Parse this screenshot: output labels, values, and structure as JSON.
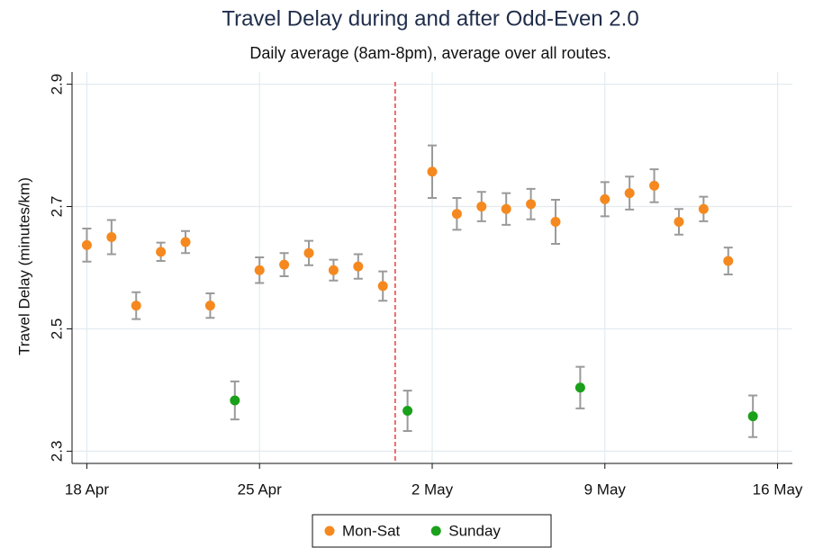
{
  "chart_data": {
    "type": "scatter",
    "title": "Travel Delay during and after Odd-Even 2.0",
    "subtitle": "Daily average (8am-8pm), average over all routes.",
    "y_label": "Travel Delay (minutes/km)",
    "xlim": [
      -0.6,
      28.6
    ],
    "xticks": [
      {
        "value": 0,
        "label": "18 Apr"
      },
      {
        "value": 7,
        "label": "25 Apr"
      },
      {
        "value": 14,
        "label": "2 May"
      },
      {
        "value": 21,
        "label": "9 May"
      },
      {
        "value": 28,
        "label": "16 May"
      }
    ],
    "ylim": [
      2.28,
      2.92
    ],
    "yticks": [
      {
        "value": 2.3,
        "label": "2.3"
      },
      {
        "value": 2.5,
        "label": "2.5"
      },
      {
        "value": 2.7,
        "label": "2.7"
      },
      {
        "value": 2.9,
        "label": "2.9"
      }
    ],
    "grid": true,
    "reference_line": {
      "x": 12.5,
      "color": "#e8322e"
    },
    "error_color": "#9a9a9a",
    "legend": "bottom",
    "series": [
      {
        "name": "Mon-Sat",
        "color": "#f5891f",
        "x": [
          0,
          1,
          2,
          3,
          4,
          5,
          7,
          8,
          9,
          10,
          11,
          12,
          14,
          15,
          16,
          17,
          18,
          19,
          21,
          22,
          23,
          24,
          25,
          26
        ],
        "values": [
          2.637,
          2.65,
          2.538,
          2.626,
          2.642,
          2.538,
          2.596,
          2.605,
          2.624,
          2.596,
          2.602,
          2.57,
          2.757,
          2.688,
          2.7,
          2.696,
          2.704,
          2.675,
          2.712,
          2.722,
          2.734,
          2.675,
          2.696,
          2.611
        ],
        "errors": [
          0.027,
          0.028,
          0.022,
          0.015,
          0.018,
          0.02,
          0.021,
          0.019,
          0.02,
          0.017,
          0.02,
          0.024,
          0.043,
          0.026,
          0.024,
          0.026,
          0.025,
          0.036,
          0.028,
          0.027,
          0.027,
          0.021,
          0.02,
          0.022
        ]
      },
      {
        "name": "Sunday",
        "color": "#1aa01a",
        "x": [
          6,
          13,
          20,
          27
        ],
        "values": [
          2.383,
          2.366,
          2.404,
          2.357
        ],
        "errors": [
          0.031,
          0.033,
          0.034,
          0.034
        ]
      }
    ]
  }
}
